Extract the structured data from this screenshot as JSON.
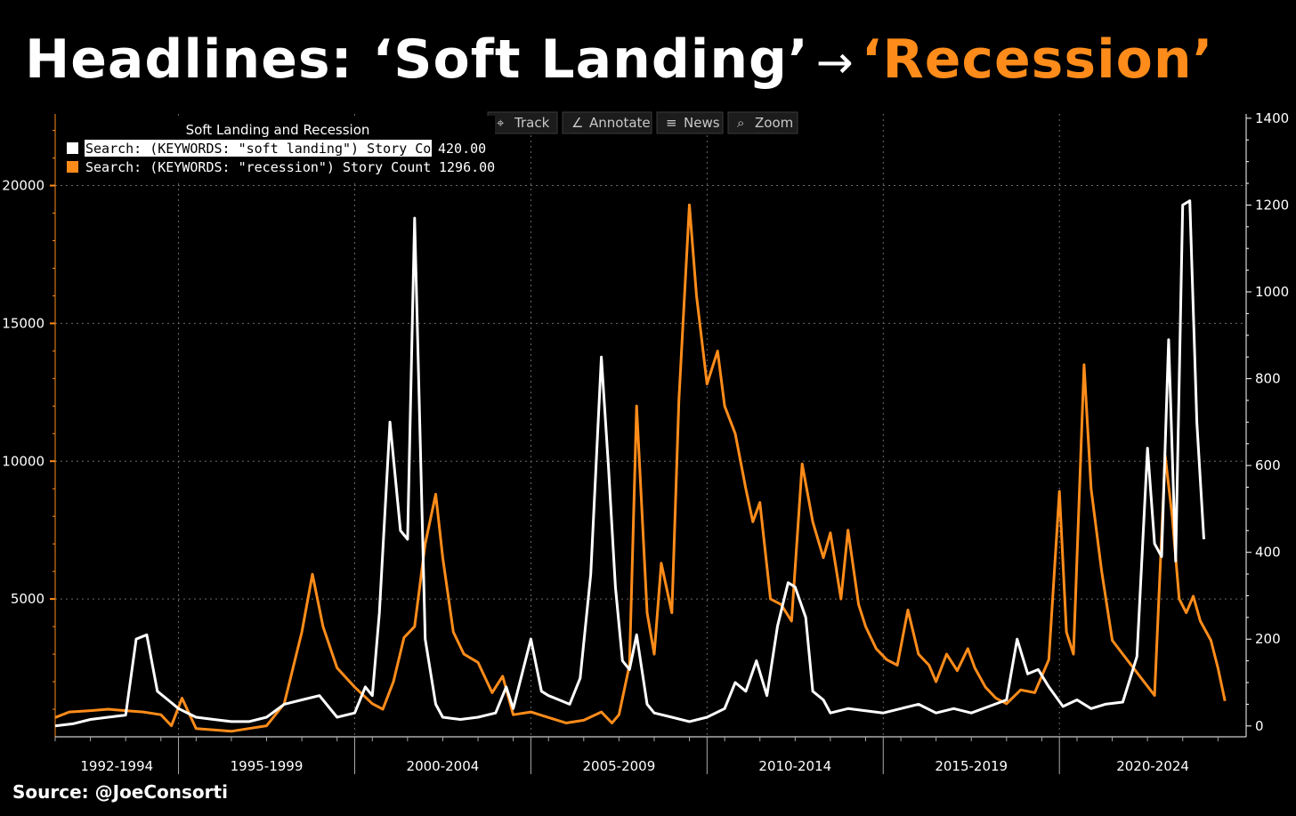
{
  "headline": {
    "part1": "Headlines: ‘Soft Landing’",
    "arrow": "→",
    "part2": "‘Recession’"
  },
  "source": "Source: @JoeConsorti",
  "toolbar": [
    "Track",
    "Annotate",
    "News",
    "Zoom"
  ],
  "colors": {
    "accent": "#ff8c1a",
    "white": "#ffffff",
    "background": "#000000",
    "grid": "#6a6a6a"
  },
  "chart_data": {
    "type": "line",
    "title": "Soft Landing and Recession",
    "grid": true,
    "legend_position": "top-left",
    "x_range": [
      1991.0,
      2024.8
    ],
    "x_period_labels": [
      "1992-1994",
      "1995-1999",
      "2000-2004",
      "2005-2009",
      "2010-2014",
      "2015-2019",
      "2020-2024"
    ],
    "x_period_boundaries": [
      1994.5,
      1999.5,
      2004.5,
      2009.5,
      2014.5,
      2019.5
    ],
    "left_axis": {
      "ticks": [
        5000,
        10000,
        15000,
        20000
      ],
      "range": [
        0,
        22600
      ],
      "color": "#ff8c1a"
    },
    "right_axis": {
      "ticks": [
        0,
        200,
        400,
        600,
        800,
        1000,
        1200,
        1400
      ],
      "range": [
        -25,
        1410
      ],
      "color": "#ffffff"
    },
    "series": [
      {
        "name": "Search: (KEYWORDS: \"recession\") Story Count",
        "last_value": "1296.00",
        "axis": "left",
        "color": "#ff8c1a",
        "points": [
          [
            1991.0,
            700
          ],
          [
            1991.4,
            900
          ],
          [
            1992.0,
            950
          ],
          [
            1992.5,
            1000
          ],
          [
            1993.0,
            950
          ],
          [
            1993.5,
            900
          ],
          [
            1994.0,
            800
          ],
          [
            1994.3,
            400
          ],
          [
            1994.6,
            1400
          ],
          [
            1995.0,
            300
          ],
          [
            1995.5,
            250
          ],
          [
            1996.0,
            200
          ],
          [
            1996.5,
            300
          ],
          [
            1997.0,
            400
          ],
          [
            1997.5,
            1200
          ],
          [
            1998.0,
            3800
          ],
          [
            1998.3,
            5900
          ],
          [
            1998.6,
            4000
          ],
          [
            1999.0,
            2500
          ],
          [
            1999.5,
            1800
          ],
          [
            2000.0,
            1200
          ],
          [
            2000.3,
            1000
          ],
          [
            2000.6,
            2000
          ],
          [
            2000.9,
            3600
          ],
          [
            2001.2,
            4000
          ],
          [
            2001.5,
            7000
          ],
          [
            2001.8,
            8800
          ],
          [
            2002.0,
            6500
          ],
          [
            2002.3,
            3800
          ],
          [
            2002.6,
            3000
          ],
          [
            2003.0,
            2700
          ],
          [
            2003.4,
            1600
          ],
          [
            2003.7,
            2200
          ],
          [
            2004.0,
            800
          ],
          [
            2004.5,
            900
          ],
          [
            2005.0,
            700
          ],
          [
            2005.5,
            500
          ],
          [
            2006.0,
            600
          ],
          [
            2006.5,
            900
          ],
          [
            2006.8,
            500
          ],
          [
            2007.0,
            800
          ],
          [
            2007.3,
            2600
          ],
          [
            2007.5,
            12000
          ],
          [
            2007.8,
            4500
          ],
          [
            2008.0,
            3000
          ],
          [
            2008.2,
            6300
          ],
          [
            2008.5,
            4500
          ],
          [
            2008.7,
            12200
          ],
          [
            2009.0,
            19300
          ],
          [
            2009.2,
            16000
          ],
          [
            2009.5,
            12800
          ],
          [
            2009.8,
            14000
          ],
          [
            2010.0,
            12000
          ],
          [
            2010.3,
            11000
          ],
          [
            2010.6,
            9000
          ],
          [
            2010.8,
            7800
          ],
          [
            2011.0,
            8500
          ],
          [
            2011.3,
            5000
          ],
          [
            2011.6,
            4800
          ],
          [
            2011.9,
            4200
          ],
          [
            2012.2,
            9900
          ],
          [
            2012.5,
            7800
          ],
          [
            2012.8,
            6500
          ],
          [
            2013.0,
            7400
          ],
          [
            2013.3,
            5000
          ],
          [
            2013.5,
            7500
          ],
          [
            2013.8,
            4800
          ],
          [
            2014.0,
            4000
          ],
          [
            2014.3,
            3200
          ],
          [
            2014.6,
            2800
          ],
          [
            2014.9,
            2600
          ],
          [
            2015.2,
            4600
          ],
          [
            2015.5,
            3000
          ],
          [
            2015.8,
            2600
          ],
          [
            2016.0,
            2000
          ],
          [
            2016.3,
            3000
          ],
          [
            2016.6,
            2400
          ],
          [
            2016.9,
            3200
          ],
          [
            2017.1,
            2500
          ],
          [
            2017.4,
            1800
          ],
          [
            2017.7,
            1400
          ],
          [
            2018.0,
            1200
          ],
          [
            2018.4,
            1700
          ],
          [
            2018.8,
            1600
          ],
          [
            2019.2,
            2800
          ],
          [
            2019.5,
            8900
          ],
          [
            2019.7,
            3800
          ],
          [
            2019.9,
            3000
          ],
          [
            2020.2,
            13500
          ],
          [
            2020.4,
            9000
          ],
          [
            2020.7,
            6000
          ],
          [
            2021.0,
            3500
          ],
          [
            2021.3,
            3000
          ],
          [
            2021.6,
            2500
          ],
          [
            2021.9,
            2000
          ],
          [
            2022.2,
            1500
          ],
          [
            2022.5,
            10200
          ],
          [
            2022.7,
            8000
          ],
          [
            2022.9,
            5000
          ],
          [
            2023.1,
            4500
          ],
          [
            2023.3,
            5100
          ],
          [
            2023.5,
            4200
          ],
          [
            2023.8,
            3500
          ],
          [
            2024.0,
            2500
          ],
          [
            2024.2,
            1300
          ]
        ]
      },
      {
        "name": "Search: (KEYWORDS: \"soft landing\") Story Count",
        "last_value": "420.00",
        "axis": "right",
        "color": "#ffffff",
        "points": [
          [
            1991.0,
            0
          ],
          [
            1991.5,
            5
          ],
          [
            1992.0,
            15
          ],
          [
            1992.5,
            20
          ],
          [
            1993.0,
            25
          ],
          [
            1993.3,
            200
          ],
          [
            1993.6,
            210
          ],
          [
            1993.9,
            80
          ],
          [
            1994.2,
            60
          ],
          [
            1994.5,
            40
          ],
          [
            1995.0,
            20
          ],
          [
            1995.5,
            15
          ],
          [
            1996.0,
            10
          ],
          [
            1996.5,
            10
          ],
          [
            1997.0,
            20
          ],
          [
            1997.5,
            50
          ],
          [
            1998.0,
            60
          ],
          [
            1998.5,
            70
          ],
          [
            1999.0,
            20
          ],
          [
            1999.5,
            30
          ],
          [
            1999.8,
            90
          ],
          [
            2000.0,
            70
          ],
          [
            2000.2,
            260
          ],
          [
            2000.5,
            700
          ],
          [
            2000.8,
            450
          ],
          [
            2001.0,
            430
          ],
          [
            2001.2,
            1170
          ],
          [
            2001.5,
            200
          ],
          [
            2001.8,
            50
          ],
          [
            2002.0,
            20
          ],
          [
            2002.5,
            15
          ],
          [
            2003.0,
            20
          ],
          [
            2003.5,
            30
          ],
          [
            2003.8,
            90
          ],
          [
            2004.0,
            40
          ],
          [
            2004.5,
            200
          ],
          [
            2004.8,
            80
          ],
          [
            2005.0,
            70
          ],
          [
            2005.3,
            60
          ],
          [
            2005.6,
            50
          ],
          [
            2005.9,
            110
          ],
          [
            2006.2,
            350
          ],
          [
            2006.5,
            850
          ],
          [
            2006.7,
            600
          ],
          [
            2006.9,
            320
          ],
          [
            2007.1,
            150
          ],
          [
            2007.3,
            130
          ],
          [
            2007.5,
            210
          ],
          [
            2007.8,
            50
          ],
          [
            2008.0,
            30
          ],
          [
            2008.5,
            20
          ],
          [
            2009.0,
            10
          ],
          [
            2009.5,
            20
          ],
          [
            2010.0,
            40
          ],
          [
            2010.3,
            100
          ],
          [
            2010.6,
            80
          ],
          [
            2010.9,
            150
          ],
          [
            2011.2,
            70
          ],
          [
            2011.5,
            230
          ],
          [
            2011.8,
            330
          ],
          [
            2012.0,
            320
          ],
          [
            2012.3,
            250
          ],
          [
            2012.5,
            80
          ],
          [
            2012.8,
            60
          ],
          [
            2013.0,
            30
          ],
          [
            2013.5,
            40
          ],
          [
            2014.0,
            35
          ],
          [
            2014.5,
            30
          ],
          [
            2015.0,
            40
          ],
          [
            2015.5,
            50
          ],
          [
            2016.0,
            30
          ],
          [
            2016.5,
            40
          ],
          [
            2017.0,
            30
          ],
          [
            2017.5,
            45
          ],
          [
            2018.0,
            60
          ],
          [
            2018.3,
            200
          ],
          [
            2018.6,
            120
          ],
          [
            2018.9,
            130
          ],
          [
            2019.2,
            90
          ],
          [
            2019.6,
            45
          ],
          [
            2020.0,
            60
          ],
          [
            2020.4,
            40
          ],
          [
            2020.8,
            50
          ],
          [
            2021.3,
            55
          ],
          [
            2021.7,
            160
          ],
          [
            2022.0,
            640
          ],
          [
            2022.2,
            420
          ],
          [
            2022.4,
            390
          ],
          [
            2022.6,
            890
          ],
          [
            2022.8,
            380
          ],
          [
            2023.0,
            1200
          ],
          [
            2023.2,
            1210
          ],
          [
            2023.4,
            700
          ],
          [
            2023.6,
            430
          ]
        ]
      }
    ]
  }
}
